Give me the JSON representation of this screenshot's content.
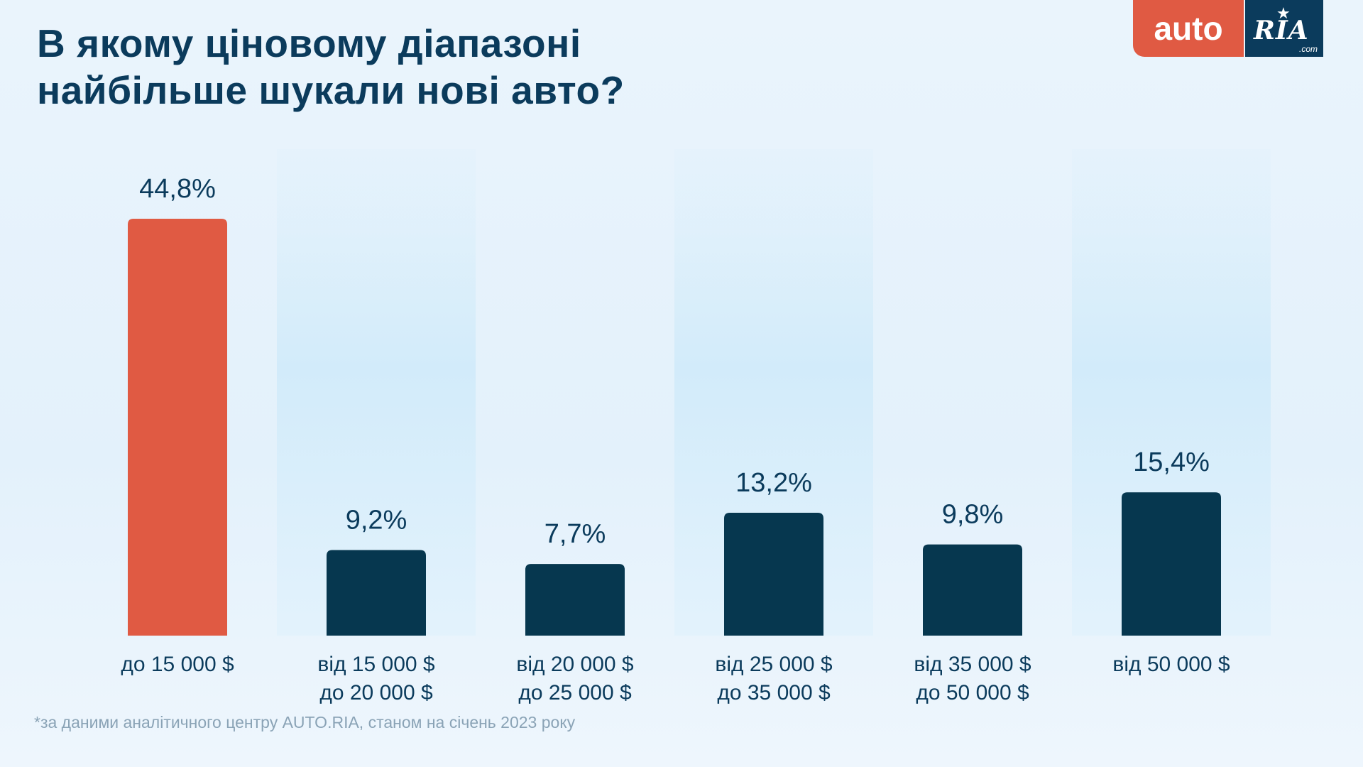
{
  "title": {
    "line1": "В якому ціновому діапазоні",
    "line2": "найбільше шукали нові авто?"
  },
  "logo": {
    "auto": "auto",
    "ria": "RIA",
    "com": ".com"
  },
  "footnote": "*за даними аналітичного центру AUTO.RIA, станом на січень 2023 року",
  "colors": {
    "highlight": "#e05a43",
    "bar": "#06374f",
    "text": "#0b3b5c",
    "band": "#d6ecfa"
  },
  "chart_data": {
    "type": "bar",
    "categories": [
      [
        "до 15 000 $"
      ],
      [
        "від 15 000 $",
        "до 20 000 $"
      ],
      [
        "від 20 000 $",
        "до 25 000 $"
      ],
      [
        "від 25 000 $",
        "до 35 000 $"
      ],
      [
        "від 35 000 $",
        "до 50 000 $"
      ],
      [
        "від 50 000 $"
      ]
    ],
    "values": [
      44.8,
      9.2,
      7.7,
      13.2,
      9.8,
      15.4
    ],
    "value_labels": [
      "44,8%",
      "9,2%",
      "7,7%",
      "13,2%",
      "9,8%",
      "15,4%"
    ],
    "highlight_index": 0,
    "ylim": [
      0,
      44.8
    ],
    "unit": "%",
    "grid": false
  }
}
